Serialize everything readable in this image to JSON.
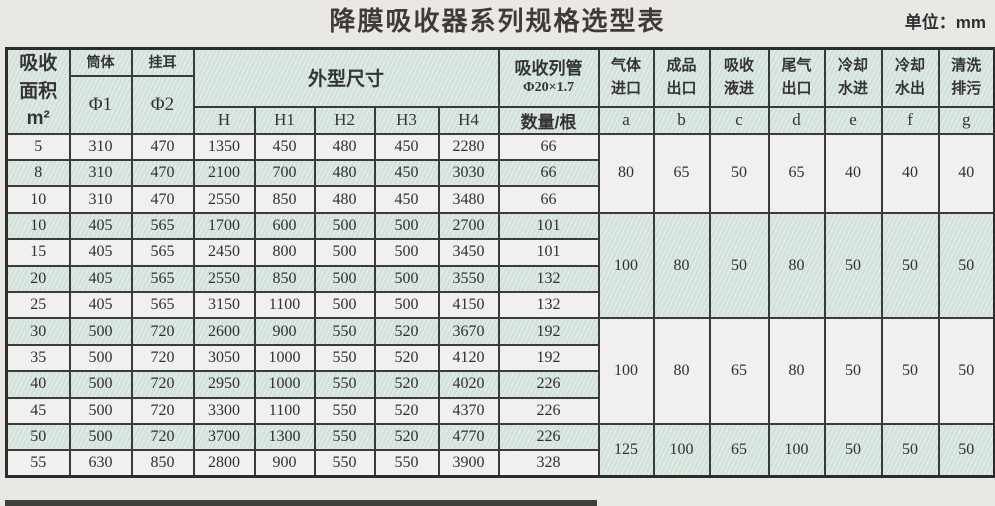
{
  "page": {
    "title": "降膜吸收器系列规格选型表",
    "unit": "单位：mm"
  },
  "colors": {
    "band_green": "#d8e4de",
    "band_white": "#f1f0ee",
    "border": "#3a3a38",
    "page_bg": "#eae8e4",
    "text": "#343432"
  },
  "header": {
    "area": "吸收\n面积\nm²",
    "body_label": "筒体",
    "body_dia": "Φ1",
    "lug_label": "挂耳",
    "lug_dia": "Φ2",
    "dims": "外型尺寸",
    "dim_cols": [
      "H",
      "H1",
      "H2",
      "H3",
      "H4"
    ],
    "tubes_line1": "吸收列管",
    "tubes_line2": "Φ20×1.7",
    "tubes_qty": "数量/根",
    "nozzles": [
      {
        "label": "气体\n进口",
        "code": "a"
      },
      {
        "label": "成品\n出口",
        "code": "b"
      },
      {
        "label": "吸收\n液进",
        "code": "c"
      },
      {
        "label": "尾气\n出口",
        "code": "d"
      },
      {
        "label": "冷却\n水进",
        "code": "e"
      },
      {
        "label": "冷却\n水出",
        "code": "f"
      },
      {
        "label": "清洗\n排污",
        "code": "g"
      }
    ]
  },
  "rows": [
    {
      "area": "5",
      "d1": "310",
      "d2": "470",
      "H": "1350",
      "H1": "450",
      "H2": "480",
      "H3": "450",
      "H4": "2280",
      "tubes": "66"
    },
    {
      "area": "8",
      "d1": "310",
      "d2": "470",
      "H": "2100",
      "H1": "700",
      "H2": "480",
      "H3": "450",
      "H4": "3030",
      "tubes": "66"
    },
    {
      "area": "10",
      "d1": "310",
      "d2": "470",
      "H": "2550",
      "H1": "850",
      "H2": "480",
      "H3": "450",
      "H4": "3480",
      "tubes": "66"
    },
    {
      "area": "10",
      "d1": "405",
      "d2": "565",
      "H": "1700",
      "H1": "600",
      "H2": "500",
      "H3": "500",
      "H4": "2700",
      "tubes": "101"
    },
    {
      "area": "15",
      "d1": "405",
      "d2": "565",
      "H": "2450",
      "H1": "800",
      "H2": "500",
      "H3": "500",
      "H4": "3450",
      "tubes": "101"
    },
    {
      "area": "20",
      "d1": "405",
      "d2": "565",
      "H": "2550",
      "H1": "850",
      "H2": "500",
      "H3": "500",
      "H4": "3550",
      "tubes": "132"
    },
    {
      "area": "25",
      "d1": "405",
      "d2": "565",
      "H": "3150",
      "H1": "1100",
      "H2": "500",
      "H3": "500",
      "H4": "4150",
      "tubes": "132"
    },
    {
      "area": "30",
      "d1": "500",
      "d2": "720",
      "H": "2600",
      "H1": "900",
      "H2": "550",
      "H3": "520",
      "H4": "3670",
      "tubes": "192"
    },
    {
      "area": "35",
      "d1": "500",
      "d2": "720",
      "H": "3050",
      "H1": "1000",
      "H2": "550",
      "H3": "520",
      "H4": "4120",
      "tubes": "192"
    },
    {
      "area": "40",
      "d1": "500",
      "d2": "720",
      "H": "2950",
      "H1": "1000",
      "H2": "550",
      "H3": "520",
      "H4": "4020",
      "tubes": "226"
    },
    {
      "area": "45",
      "d1": "500",
      "d2": "720",
      "H": "3300",
      "H1": "1100",
      "H2": "550",
      "H3": "520",
      "H4": "4370",
      "tubes": "226"
    },
    {
      "area": "50",
      "d1": "500",
      "d2": "720",
      "H": "3700",
      "H1": "1300",
      "H2": "550",
      "H3": "520",
      "H4": "4770",
      "tubes": "226"
    },
    {
      "area": "55",
      "d1": "630",
      "d2": "850",
      "H": "2800",
      "H1": "900",
      "H2": "550",
      "H3": "550",
      "H4": "3900",
      "tubes": "328"
    }
  ],
  "groups": [
    {
      "span": 3,
      "a": "80",
      "b": "65",
      "c": "50",
      "d": "65",
      "e": "40",
      "f": "40",
      "g": "40"
    },
    {
      "span": 4,
      "a": "100",
      "b": "80",
      "c": "50",
      "d": "80",
      "e": "50",
      "f": "50",
      "g": "50"
    },
    {
      "span": 4,
      "a": "100",
      "b": "80",
      "c": "65",
      "d": "80",
      "e": "50",
      "f": "50",
      "g": "50"
    },
    {
      "span": 2,
      "a": "125",
      "b": "100",
      "c": "65",
      "d": "100",
      "e": "50",
      "f": "50",
      "g": "50"
    }
  ]
}
